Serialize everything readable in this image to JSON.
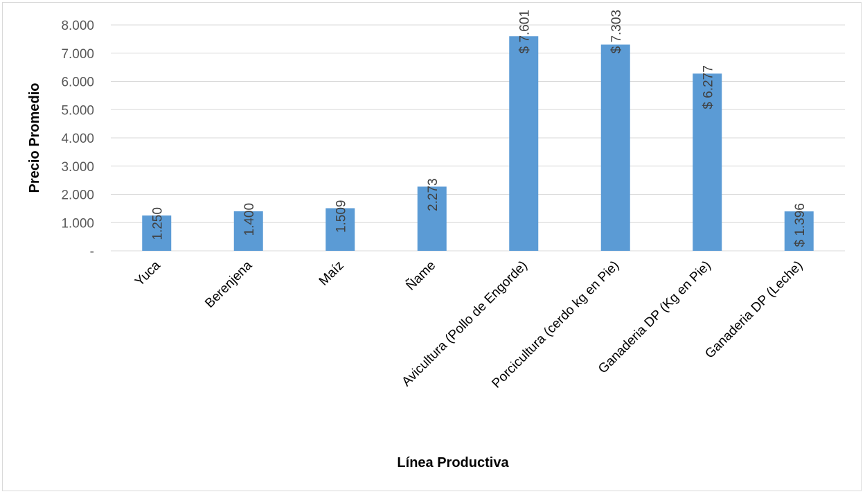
{
  "chart_data": {
    "type": "bar",
    "categories": [
      "Yuca",
      "Berenjena",
      "Maíz",
      "Ñame",
      "Avicultura (Pollo de Engorde)",
      "Porcicultura (cerdo kg en Pie)",
      "Ganaderia DP (Kg en Pie)",
      "Ganaderia DP (Leche)"
    ],
    "values": [
      1250,
      1400,
      1509,
      2273,
      7601,
      7303,
      6277,
      1396
    ],
    "data_labels": [
      "1.250",
      "1.400",
      "1.509",
      "2.273",
      "$ 7.601",
      "$ 7.303",
      "$ 6.277",
      "$ 1.396"
    ],
    "title": "",
    "xlabel": "Línea Productiva",
    "ylabel": "Precio Promedio",
    "ylim": [
      0,
      8000
    ],
    "yticks": [
      0,
      1000,
      2000,
      3000,
      4000,
      5000,
      6000,
      7000,
      8000
    ],
    "ytick_labels": [
      "-",
      "1.000",
      "2.000",
      "3.000",
      "4.000",
      "5.000",
      "6.000",
      "7.000",
      "8.000"
    ],
    "grid": true,
    "legend": "none",
    "bar_color": "#5b9bd5",
    "grid_color": "#d9d9d9"
  }
}
